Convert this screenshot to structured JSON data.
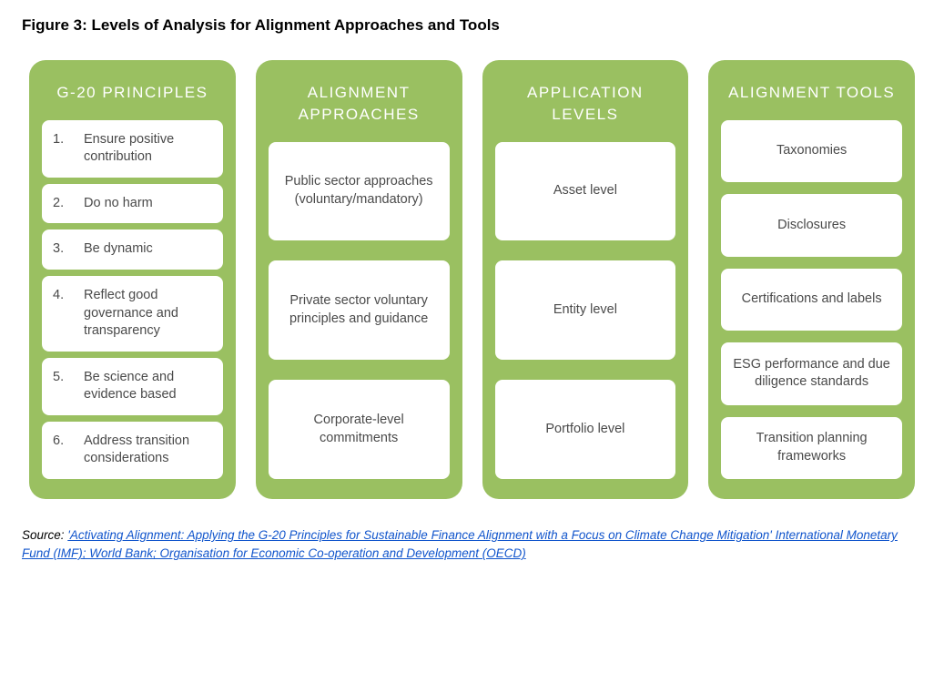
{
  "figure": {
    "title": "Figure 3: Levels of Analysis for Alignment Approaches and Tools",
    "column_bg": "#9ac061",
    "box_bg": "#ffffff",
    "box_text_color": "#4a4a4a",
    "header_text_color": "#ffffff",
    "title_color": "#000000"
  },
  "columns": {
    "principles": {
      "header": "G-20 PRINCIPLES",
      "items": [
        {
          "num": "1.",
          "text": "Ensure positive contribution"
        },
        {
          "num": "2.",
          "text": "Do no harm"
        },
        {
          "num": "3.",
          "text": "Be dynamic"
        },
        {
          "num": "4.",
          "text": "Reflect good governance and transparency"
        },
        {
          "num": "5.",
          "text": "Be science and evidence based"
        },
        {
          "num": "6.",
          "text": "Address transition considerations"
        }
      ]
    },
    "approaches": {
      "header": "ALIGNMENT APPROACHES",
      "items": [
        "Public sector approaches (voluntary/mandatory)",
        "Private sector voluntary principles and guidance",
        "Corporate-level commitments"
      ]
    },
    "levels": {
      "header": "APPLICATION LEVELS",
      "items": [
        "Asset level",
        "Entity level",
        "Portfolio level"
      ]
    },
    "tools": {
      "header": "ALIGNMENT TOOLS",
      "items": [
        "Taxonomies",
        "Disclosures",
        "Certifications and labels",
        "ESG performance and due diligence standards",
        "Transition planning frameworks"
      ]
    }
  },
  "source": {
    "prefix": "Source: ",
    "link_text": "'Activating Alignment: Applying the G-20 Principles for Sustainable Finance Alignment with a Focus on Climate Change Mitigation' International Monetary Fund (IMF); World Bank; Organisation for Economic Co-operation and Development (OECD)"
  }
}
